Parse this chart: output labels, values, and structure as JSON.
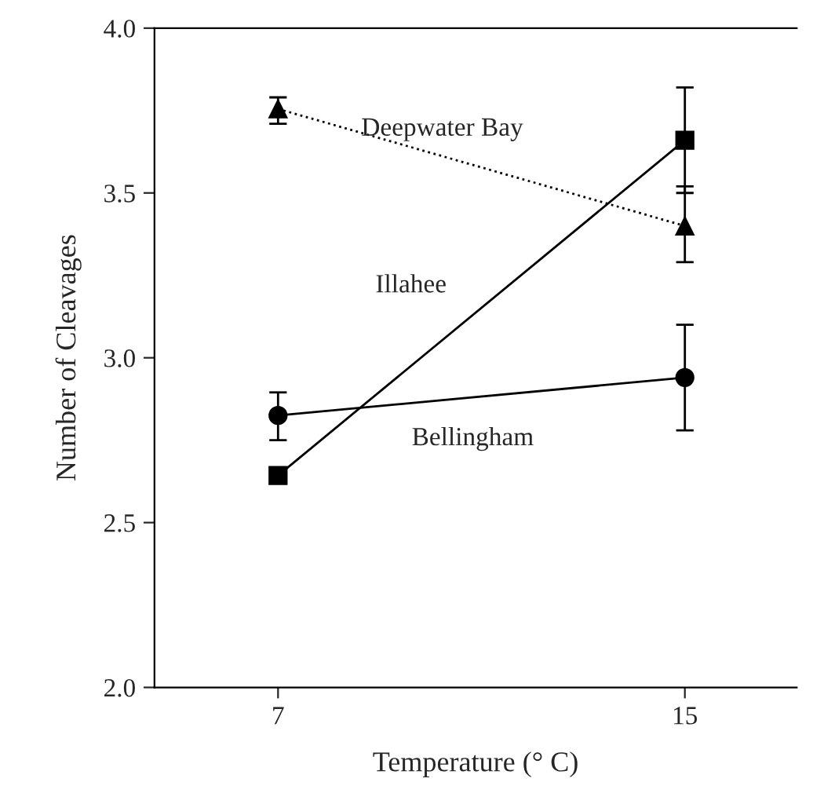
{
  "chart_data": {
    "type": "line",
    "xlabel": "Temperature (° C)",
    "ylabel": "Number of Cleavages",
    "x": [
      7,
      15
    ],
    "xlim": [
      4.57,
      17.2
    ],
    "xticks": [
      7,
      15
    ],
    "ylim": [
      2.0,
      4.0
    ],
    "yticks": [
      {
        "value": 2.0,
        "label": "2.0"
      },
      {
        "value": 2.5,
        "label": "2.5"
      },
      {
        "value": 3.0,
        "label": "3.0"
      },
      {
        "value": 3.5,
        "label": "3.5"
      },
      {
        "value": 4.0,
        "label": "4.0"
      }
    ],
    "grid": false,
    "legend": false,
    "series": [
      {
        "name": "Deepwater Bay",
        "color": "#000000",
        "marker": "triangle",
        "line_style": "dotted",
        "values": [
          3.755,
          3.4
        ],
        "errors": [
          [
            3.71,
            3.79
          ],
          [
            3.29,
            3.52
          ]
        ]
      },
      {
        "name": "Illahee",
        "color": "#000000",
        "marker": "square",
        "line_style": "solid",
        "values": [
          2.643,
          3.66
        ],
        "errors": [
          null,
          [
            3.5,
            3.82
          ]
        ]
      },
      {
        "name": "Bellingham",
        "color": "#000000",
        "marker": "circle",
        "line_style": "solid",
        "values": [
          2.825,
          2.94
        ],
        "errors": [
          [
            2.75,
            2.895
          ],
          [
            2.78,
            3.1
          ]
        ]
      }
    ]
  }
}
